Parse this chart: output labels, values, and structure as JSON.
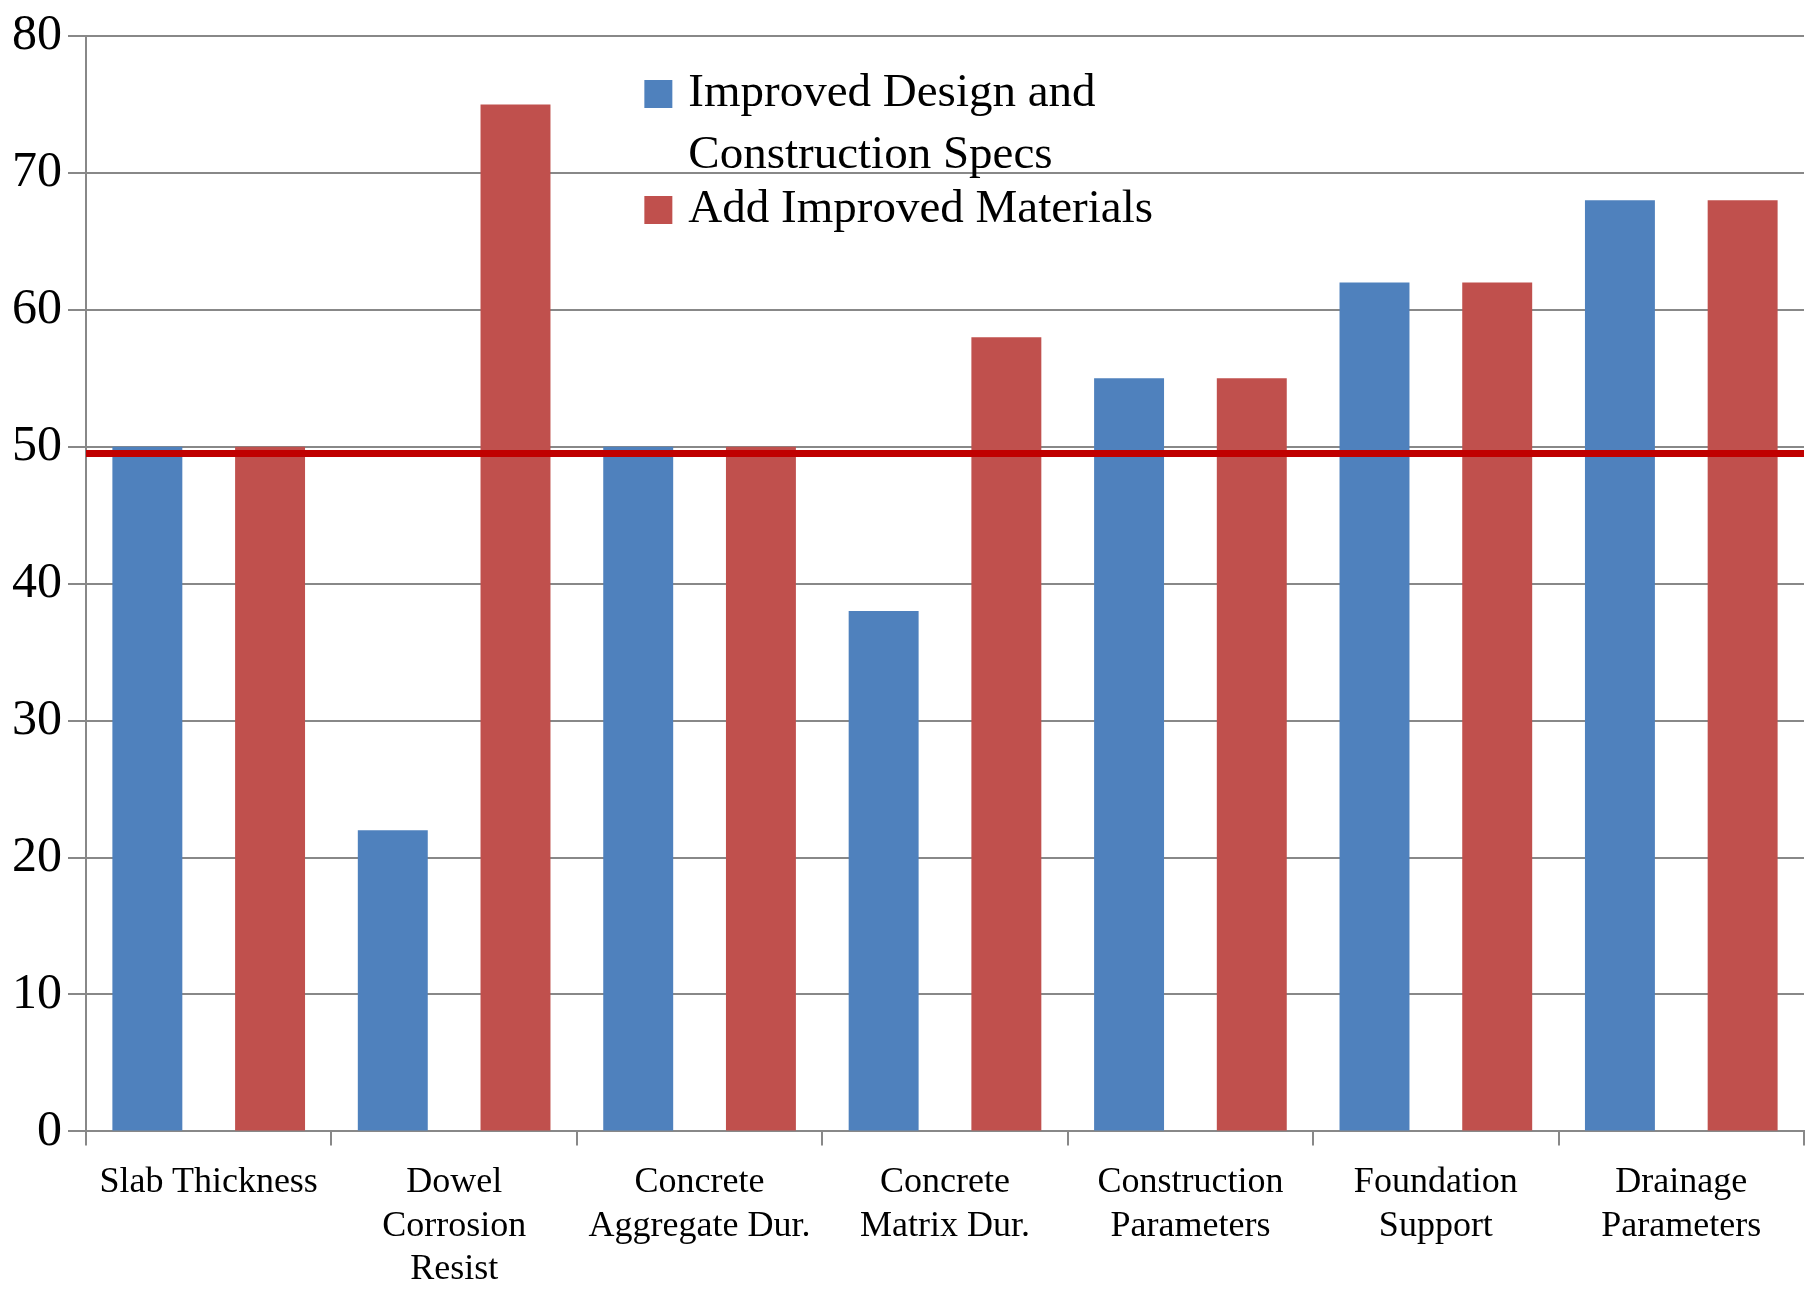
{
  "chart_data": {
    "type": "bar",
    "categories": [
      "Slab Thickness",
      "Dowel Corrosion Resist",
      "Concrete Aggregate Dur.",
      "Concrete Matrix Dur.",
      "Construction Parameters",
      "Foundation Support",
      "Drainage Parameters"
    ],
    "series": [
      {
        "name": "Improved Design and Construction Specs",
        "color": "#4f81bd",
        "values": [
          50,
          22,
          50,
          38,
          55,
          62,
          68
        ]
      },
      {
        "name": "Add Improved Materials",
        "color": "#c0504d",
        "values": [
          50,
          75,
          50,
          58,
          55,
          62,
          68
        ]
      }
    ],
    "ylim": [
      0,
      80
    ],
    "yticks": [
      0,
      10,
      20,
      30,
      40,
      50,
      60,
      70,
      80
    ],
    "grid": "y",
    "legend": "top",
    "ref_lines": [
      {
        "axis": "y",
        "value": 49.5,
        "color": "#c00000"
      }
    ]
  }
}
